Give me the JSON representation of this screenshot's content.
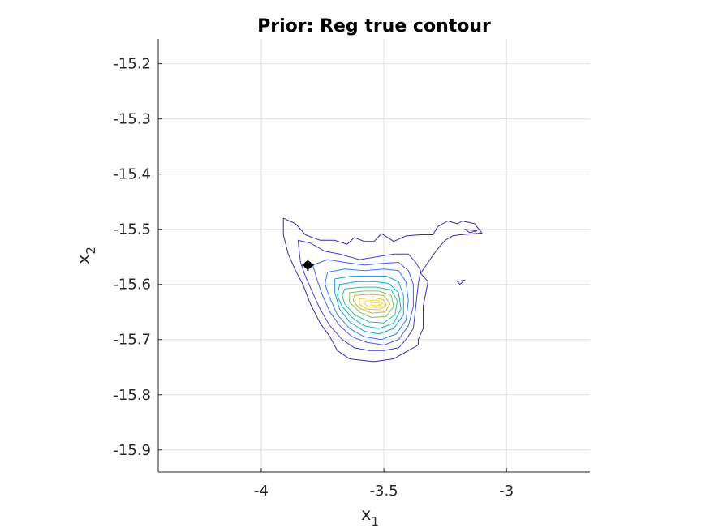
{
  "chart_data": {
    "type": "contour",
    "title": "Prior: Reg true contour",
    "xlabel": "x",
    "xlabel_sub": "1",
    "ylabel": "x",
    "ylabel_sub": "2",
    "xlim": [
      -4.42,
      -2.66
    ],
    "ylim": [
      -15.94,
      -15.155
    ],
    "xticks": [
      -4,
      -3.5,
      -3
    ],
    "xtick_labels": [
      "-4",
      "-3.5",
      "-3"
    ],
    "yticks": [
      -15.2,
      -15.3,
      -15.4,
      -15.5,
      -15.6,
      -15.7,
      -15.8,
      -15.9
    ],
    "ytick_labels": [
      "-15.2",
      "-15.3",
      "-15.4",
      "-15.5",
      "-15.6",
      "-15.7",
      "-15.8",
      "-15.9"
    ],
    "grid": true,
    "marker": {
      "x": -3.81,
      "y": -15.565,
      "color": "#000000"
    },
    "levels": [
      {
        "color": "#3d26a8",
        "points": [
          [
            -3.91,
            -15.48
          ],
          [
            -3.86,
            -15.49
          ],
          [
            -3.82,
            -15.51
          ],
          [
            -3.76,
            -15.52
          ],
          [
            -3.7,
            -15.52
          ],
          [
            -3.65,
            -15.527
          ],
          [
            -3.62,
            -15.515
          ],
          [
            -3.58,
            -15.522
          ],
          [
            -3.54,
            -15.522
          ],
          [
            -3.51,
            -15.508
          ],
          [
            -3.46,
            -15.522
          ],
          [
            -3.41,
            -15.512
          ],
          [
            -3.35,
            -15.51
          ],
          [
            -3.3,
            -15.51
          ],
          [
            -3.28,
            -15.495
          ],
          [
            -3.24,
            -15.485
          ],
          [
            -3.2,
            -15.49
          ],
          [
            -3.18,
            -15.485
          ],
          [
            -3.13,
            -15.49
          ],
          [
            -3.1,
            -15.507
          ],
          [
            -3.19,
            -15.51
          ],
          [
            -3.22,
            -15.512
          ],
          [
            -3.25,
            -15.52
          ],
          [
            -3.28,
            -15.535
          ],
          [
            -3.32,
            -15.56
          ],
          [
            -3.35,
            -15.58
          ],
          [
            -3.32,
            -15.595
          ],
          [
            -3.34,
            -15.64
          ],
          [
            -3.34,
            -15.68
          ],
          [
            -3.36,
            -15.7
          ],
          [
            -3.36,
            -15.71
          ],
          [
            -3.4,
            -15.72
          ],
          [
            -3.44,
            -15.73
          ],
          [
            -3.46,
            -15.735
          ],
          [
            -3.54,
            -15.74
          ],
          [
            -3.58,
            -15.738
          ],
          [
            -3.64,
            -15.735
          ],
          [
            -3.69,
            -15.72
          ],
          [
            -3.72,
            -15.695
          ],
          [
            -3.76,
            -15.67
          ],
          [
            -3.8,
            -15.635
          ],
          [
            -3.83,
            -15.6
          ],
          [
            -3.86,
            -15.575
          ],
          [
            -3.89,
            -15.545
          ],
          [
            -3.91,
            -15.51
          ]
        ]
      },
      {
        "color": "#3f3dd4",
        "points": [
          [
            -3.85,
            -15.52
          ],
          [
            -3.8,
            -15.525
          ],
          [
            -3.74,
            -15.54
          ],
          [
            -3.68,
            -15.545
          ],
          [
            -3.6,
            -15.555
          ],
          [
            -3.53,
            -15.55
          ],
          [
            -3.46,
            -15.545
          ],
          [
            -3.4,
            -15.545
          ],
          [
            -3.37,
            -15.56
          ],
          [
            -3.35,
            -15.575
          ],
          [
            -3.36,
            -15.6
          ],
          [
            -3.37,
            -15.64
          ],
          [
            -3.38,
            -15.68
          ],
          [
            -3.41,
            -15.7
          ],
          [
            -3.44,
            -15.715
          ],
          [
            -3.5,
            -15.72
          ],
          [
            -3.56,
            -15.72
          ],
          [
            -3.62,
            -15.715
          ],
          [
            -3.67,
            -15.7
          ],
          [
            -3.72,
            -15.675
          ],
          [
            -3.76,
            -15.645
          ],
          [
            -3.79,
            -15.615
          ],
          [
            -3.82,
            -15.585
          ],
          [
            -3.84,
            -15.56
          ]
        ]
      },
      {
        "color": "#4760f0",
        "points": [
          [
            -3.79,
            -15.565
          ],
          [
            -3.73,
            -15.555
          ],
          [
            -3.66,
            -15.56
          ],
          [
            -3.58,
            -15.565
          ],
          [
            -3.51,
            -15.562
          ],
          [
            -3.44,
            -15.56
          ],
          [
            -3.4,
            -15.575
          ],
          [
            -3.38,
            -15.6
          ],
          [
            -3.38,
            -15.64
          ],
          [
            -3.4,
            -15.675
          ],
          [
            -3.44,
            -15.7
          ],
          [
            -3.5,
            -15.71
          ],
          [
            -3.57,
            -15.705
          ],
          [
            -3.63,
            -15.695
          ],
          [
            -3.68,
            -15.675
          ],
          [
            -3.72,
            -15.65
          ],
          [
            -3.75,
            -15.62
          ],
          [
            -3.77,
            -15.595
          ]
        ]
      },
      {
        "color": "#2f7ff8",
        "points": [
          [
            -3.73,
            -15.578
          ],
          [
            -3.66,
            -15.572
          ],
          [
            -3.58,
            -15.575
          ],
          [
            -3.5,
            -15.572
          ],
          [
            -3.44,
            -15.575
          ],
          [
            -3.41,
            -15.595
          ],
          [
            -3.4,
            -15.63
          ],
          [
            -3.41,
            -15.665
          ],
          [
            -3.45,
            -15.69
          ],
          [
            -3.51,
            -15.7
          ],
          [
            -3.58,
            -15.695
          ],
          [
            -3.64,
            -15.68
          ],
          [
            -3.69,
            -15.655
          ],
          [
            -3.72,
            -15.625
          ],
          [
            -3.74,
            -15.6
          ]
        ]
      },
      {
        "color": "#1c9ede",
        "points": [
          [
            -3.7,
            -15.59
          ],
          [
            -3.63,
            -15.585
          ],
          [
            -3.56,
            -15.585
          ],
          [
            -3.49,
            -15.585
          ],
          [
            -3.44,
            -15.595
          ],
          [
            -3.42,
            -15.62
          ],
          [
            -3.42,
            -15.655
          ],
          [
            -3.46,
            -15.68
          ],
          [
            -3.52,
            -15.69
          ],
          [
            -3.58,
            -15.685
          ],
          [
            -3.64,
            -15.668
          ],
          [
            -3.68,
            -15.645
          ],
          [
            -3.7,
            -15.615
          ]
        ]
      },
      {
        "color": "#08b3c2",
        "points": [
          [
            -3.68,
            -15.6
          ],
          [
            -3.61,
            -15.595
          ],
          [
            -3.54,
            -15.595
          ],
          [
            -3.48,
            -15.598
          ],
          [
            -3.44,
            -15.615
          ],
          [
            -3.43,
            -15.645
          ],
          [
            -3.46,
            -15.67
          ],
          [
            -3.52,
            -15.68
          ],
          [
            -3.58,
            -15.675
          ],
          [
            -3.63,
            -15.66
          ],
          [
            -3.67,
            -15.64
          ],
          [
            -3.69,
            -15.62
          ]
        ]
      },
      {
        "color": "#2ebd9f",
        "points": [
          [
            -3.66,
            -15.608
          ],
          [
            -3.59,
            -15.605
          ],
          [
            -3.53,
            -15.605
          ],
          [
            -3.47,
            -15.61
          ],
          [
            -3.445,
            -15.63
          ],
          [
            -3.455,
            -15.655
          ],
          [
            -3.5,
            -15.67
          ],
          [
            -3.56,
            -15.668
          ],
          [
            -3.62,
            -15.655
          ],
          [
            -3.66,
            -15.635
          ],
          [
            -3.67,
            -15.62
          ]
        ]
      },
      {
        "color": "#7fc061",
        "points": [
          [
            -3.64,
            -15.615
          ],
          [
            -3.58,
            -15.612
          ],
          [
            -3.52,
            -15.612
          ],
          [
            -3.47,
            -15.62
          ],
          [
            -3.46,
            -15.64
          ],
          [
            -3.49,
            -15.658
          ],
          [
            -3.55,
            -15.66
          ],
          [
            -3.6,
            -15.65
          ],
          [
            -3.64,
            -15.632
          ]
        ]
      },
      {
        "color": "#c3b930",
        "points": [
          [
            -3.62,
            -15.62
          ],
          [
            -3.56,
            -15.618
          ],
          [
            -3.5,
            -15.62
          ],
          [
            -3.475,
            -15.635
          ],
          [
            -3.495,
            -15.65
          ],
          [
            -3.55,
            -15.652
          ],
          [
            -3.6,
            -15.643
          ],
          [
            -3.625,
            -15.63
          ]
        ]
      },
      {
        "color": "#f0bd2d",
        "points": [
          [
            -3.6,
            -15.626
          ],
          [
            -3.54,
            -15.624
          ],
          [
            -3.5,
            -15.628
          ],
          [
            -3.49,
            -15.638
          ],
          [
            -3.52,
            -15.646
          ],
          [
            -3.57,
            -15.645
          ],
          [
            -3.6,
            -15.636
          ]
        ]
      },
      {
        "color": "#f8da18",
        "points": [
          [
            -3.575,
            -15.63
          ],
          [
            -3.53,
            -15.628
          ],
          [
            -3.505,
            -15.634
          ],
          [
            -3.52,
            -15.642
          ],
          [
            -3.56,
            -15.641
          ],
          [
            -3.578,
            -15.636
          ]
        ]
      },
      {
        "color": "#e8e21a",
        "points": [
          [
            -3.55,
            -15.633
          ],
          [
            -3.52,
            -15.633
          ],
          [
            -3.515,
            -15.637
          ],
          [
            -3.535,
            -15.639
          ],
          [
            -3.553,
            -15.637
          ]
        ]
      }
    ],
    "extra_contours": [
      {
        "color": "#3d26a8",
        "points": [
          [
            -3.17,
            -15.5
          ],
          [
            -3.12,
            -15.503
          ],
          [
            -3.15,
            -15.506
          ]
        ]
      },
      {
        "color": "#3d26a8",
        "points": [
          [
            -3.2,
            -15.595
          ],
          [
            -3.17,
            -15.592
          ],
          [
            -3.19,
            -15.6
          ]
        ]
      }
    ]
  }
}
